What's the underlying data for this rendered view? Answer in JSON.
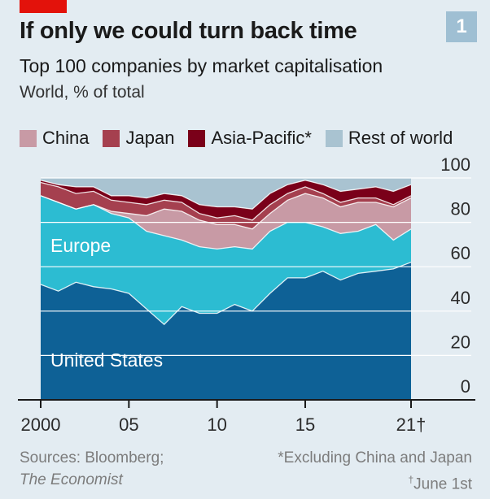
{
  "header": {
    "title": "If only we could turn back time",
    "subtitle": "Top 100 companies by market capitalisation",
    "unit": "World, % of total",
    "badge": "1"
  },
  "legend": [
    {
      "label": "China",
      "color": "#c89aa5"
    },
    {
      "label": "Japan",
      "color": "#a5404f"
    },
    {
      "label": "Asia-Pacific*",
      "color": "#7a0019"
    },
    {
      "label": "Rest of world",
      "color": "#a9c3d1"
    }
  ],
  "chart_data": {
    "type": "area",
    "stacked": true,
    "x": [
      2000,
      2001,
      2002,
      2003,
      2004,
      2005,
      2006,
      2007,
      2008,
      2009,
      2010,
      2011,
      2012,
      2013,
      2014,
      2015,
      2016,
      2017,
      2018,
      2019,
      2020,
      2021
    ],
    "x_ticks": [
      {
        "value": 2000,
        "label": "2000"
      },
      {
        "value": 2005,
        "label": "05"
      },
      {
        "value": 2010,
        "label": "10"
      },
      {
        "value": 2015,
        "label": "15"
      },
      {
        "value": 2021,
        "label": "21†"
      }
    ],
    "y_ticks": [
      "0",
      "20",
      "40",
      "60",
      "80",
      "100"
    ],
    "ylim": [
      0,
      100
    ],
    "series": [
      {
        "name": "United States",
        "color": "#0e6196",
        "values": [
          52,
          49,
          53,
          51,
          50,
          48,
          41,
          34,
          42,
          39,
          39,
          43,
          40,
          48,
          55,
          55,
          58,
          54,
          57,
          58,
          59,
          62
        ]
      },
      {
        "name": "Europe",
        "color": "#2cbcd2",
        "values": [
          40,
          40,
          33,
          37,
          34,
          34,
          35,
          40,
          30,
          30,
          29,
          26,
          28,
          28,
          25,
          25,
          20,
          21,
          19,
          21,
          13,
          15
        ]
      },
      {
        "name": "China",
        "color": "#c89aa5",
        "values": [
          0,
          0,
          0,
          0,
          1,
          2,
          7,
          12,
          13,
          12,
          11,
          10,
          9,
          8,
          10,
          13,
          13,
          12,
          13,
          10,
          15,
          14
        ]
      },
      {
        "name": "Japan",
        "color": "#a5404f",
        "values": [
          6,
          7,
          7,
          6,
          5,
          5,
          5,
          4,
          4,
          3,
          3,
          4,
          4,
          4,
          3,
          3,
          2,
          2,
          2,
          2,
          1,
          1
        ]
      },
      {
        "name": "Asia-Pacific*",
        "color": "#7a0019",
        "values": [
          1,
          1,
          3,
          2,
          2,
          3,
          3,
          3,
          3,
          4,
          5,
          4,
          5,
          5,
          4,
          3,
          4,
          5,
          4,
          5,
          6,
          5
        ]
      },
      {
        "name": "Rest of world",
        "color": "#a9c3d1",
        "values": [
          1,
          3,
          4,
          4,
          8,
          8,
          9,
          7,
          8,
          12,
          13,
          13,
          14,
          7,
          3,
          1,
          3,
          6,
          5,
          4,
          6,
          3
        ]
      }
    ],
    "labels": {
      "us": "United States",
      "europe": "Europe"
    }
  },
  "footer": {
    "sources_line1": "Sources: Bloomberg;",
    "sources_line2": "The Economist",
    "note1": "*Excluding China and Japan",
    "note2_mark": "†",
    "note2": "June 1st"
  }
}
